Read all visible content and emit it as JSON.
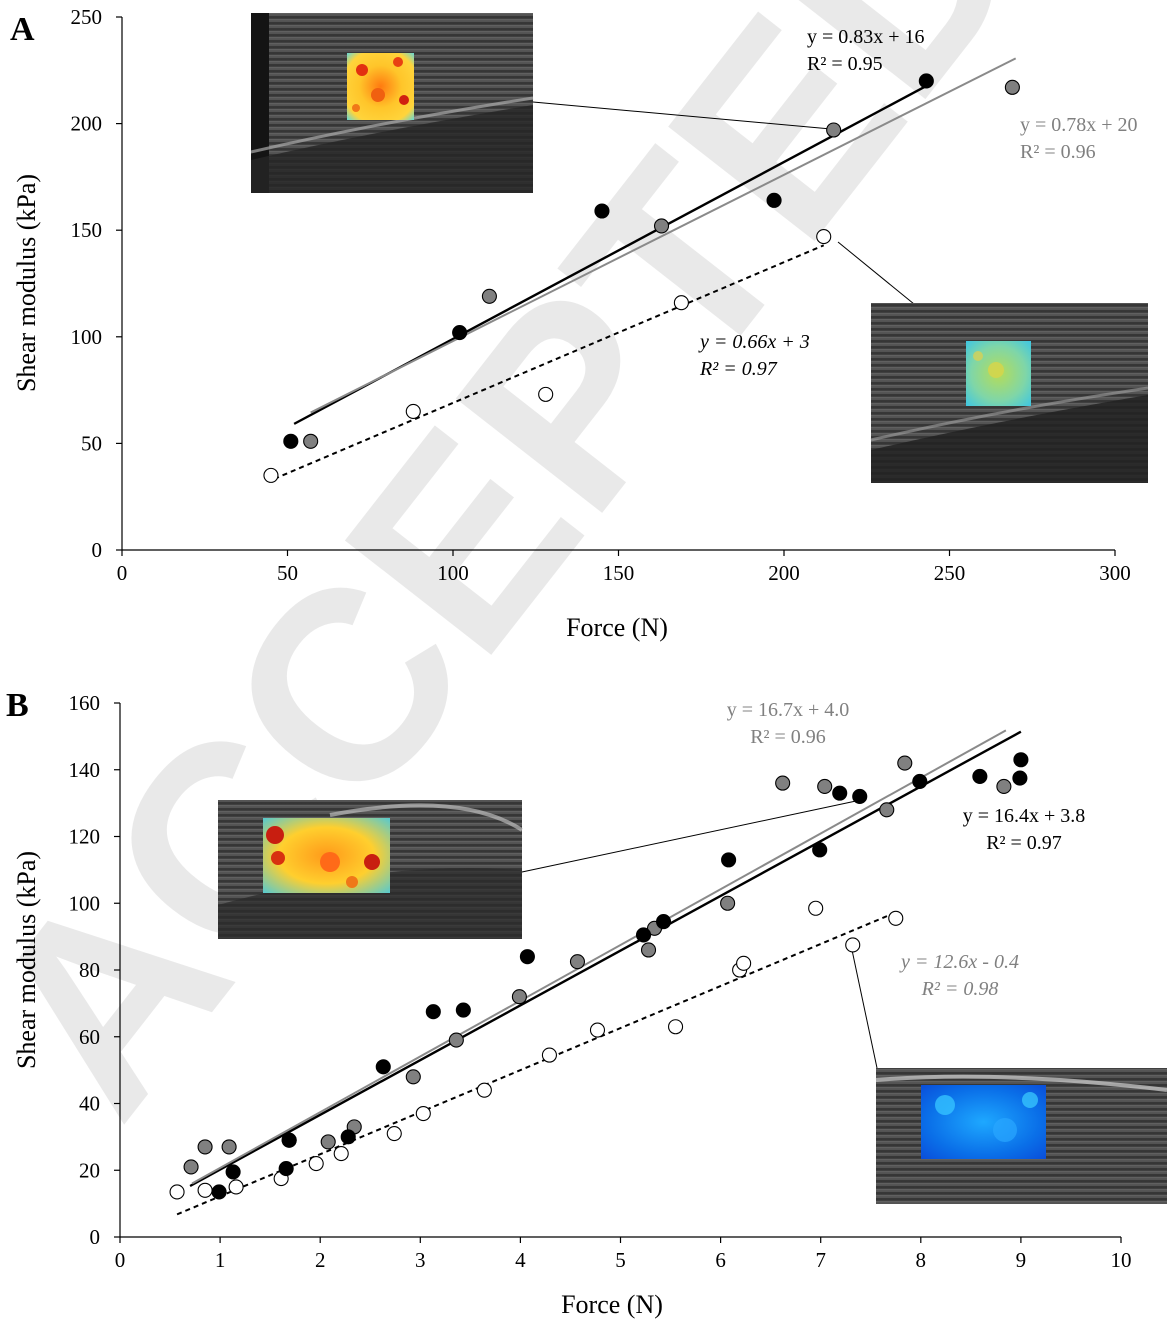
{
  "watermark": "ACCEPTED",
  "colors": {
    "black": "#000000",
    "gray_marker": "#808080",
    "gray_line": "#8a8a8a",
    "open_fill": "#ffffff",
    "eq_gray": "#808080"
  },
  "chart_data": [
    {
      "panel": "A",
      "type": "scatter",
      "xlabel": "Force (N)",
      "ylabel": "Shear modulus (kPa)",
      "xlim": [
        0,
        300
      ],
      "ylim": [
        0,
        250
      ],
      "xticks": [
        0,
        50,
        100,
        150,
        200,
        250,
        300
      ],
      "yticks": [
        0,
        50,
        100,
        150,
        200,
        250
      ],
      "series": [
        {
          "style": "black-filled",
          "points": [
            [
              51,
              51
            ],
            [
              102,
              102
            ],
            [
              145,
              159
            ],
            [
              197,
              164
            ],
            [
              243,
              220
            ]
          ],
          "fit": {
            "slope": 0.83,
            "intercept": 16,
            "x_range": [
              52,
              243
            ],
            "line": "solid-black"
          },
          "equation": "y = 0.83x + 16",
          "r2": "R² = 0.95"
        },
        {
          "style": "gray-filled",
          "points": [
            [
              57,
              51
            ],
            [
              111,
              119
            ],
            [
              163,
              152
            ],
            [
              215,
              197
            ],
            [
              269,
              217
            ]
          ],
          "fit": {
            "slope": 0.78,
            "intercept": 20,
            "x_range": [
              57,
              270
            ],
            "line": "solid-gray"
          },
          "equation": "y = 0.78x + 20",
          "r2": "R² = 0.96"
        },
        {
          "style": "open",
          "points": [
            [
              45,
              35
            ],
            [
              88,
              65
            ],
            [
              128,
              73
            ],
            [
              169,
              116
            ],
            [
              212,
              147
            ]
          ],
          "fit": {
            "slope": 0.66,
            "intercept": 3,
            "x_range": [
              46,
              212
            ],
            "line": "dashed-black"
          },
          "equation": "y = 0.66x + 3",
          "r2": "R² = 0.97"
        }
      ]
    },
    {
      "panel": "B",
      "type": "scatter",
      "xlabel": "Force (N)",
      "ylabel": "Shear modulus (kPa)",
      "xlim": [
        0,
        10
      ],
      "ylim": [
        0,
        160
      ],
      "xticks": [
        0,
        1,
        2,
        3,
        4,
        5,
        6,
        7,
        8,
        9,
        10
      ],
      "yticks": [
        0,
        20,
        40,
        60,
        80,
        100,
        120,
        140,
        160
      ],
      "series": [
        {
          "style": "black-filled",
          "points": [
            [
              0.99,
              13.5
            ],
            [
              1.13,
              19.5
            ],
            [
              1.66,
              20.5
            ],
            [
              1.69,
              29
            ],
            [
              2.28,
              30
            ],
            [
              2.63,
              51
            ],
            [
              3.13,
              67.5
            ],
            [
              3.43,
              68
            ],
            [
              4.07,
              84
            ],
            [
              5.23,
              90.5
            ],
            [
              5.43,
              94.5
            ],
            [
              6.08,
              113
            ],
            [
              6.99,
              116
            ],
            [
              7.19,
              133
            ],
            [
              7.39,
              132
            ],
            [
              7.99,
              136.5
            ],
            [
              8.59,
              138
            ],
            [
              8.99,
              137.5
            ],
            [
              9.0,
              143
            ]
          ],
          "fit": {
            "slope": 16.4,
            "intercept": 3.8,
            "x_range": [
              0.7,
              9.0
            ],
            "line": "solid-black"
          },
          "equation": "y = 16.4x + 3.8",
          "r2": "R² = 0.97"
        },
        {
          "style": "gray-filled",
          "points": [
            [
              0.71,
              21
            ],
            [
              0.85,
              27
            ],
            [
              1.09,
              27
            ],
            [
              1.69,
              29
            ],
            [
              2.08,
              28.5
            ],
            [
              2.34,
              33
            ],
            [
              2.93,
              48
            ],
            [
              3.36,
              59
            ],
            [
              3.99,
              72
            ],
            [
              4.57,
              82.5
            ],
            [
              5.28,
              86
            ],
            [
              5.34,
              92.5
            ],
            [
              6.07,
              100
            ],
            [
              6.62,
              136
            ],
            [
              7.04,
              135
            ],
            [
              7.66,
              128
            ],
            [
              7.84,
              142
            ],
            [
              8.83,
              135
            ]
          ],
          "fit": {
            "slope": 16.7,
            "intercept": 4.0,
            "x_range": [
              0.72,
              8.85
            ],
            "line": "solid-gray"
          },
          "equation": "y = 16.7x + 4.0",
          "r2": "R² = 0.96"
        },
        {
          "style": "open",
          "points": [
            [
              0.57,
              13.5
            ],
            [
              0.85,
              14
            ],
            [
              1.16,
              15
            ],
            [
              1.61,
              17.5
            ],
            [
              1.96,
              22
            ],
            [
              2.21,
              25
            ],
            [
              2.74,
              31
            ],
            [
              3.03,
              37
            ],
            [
              3.64,
              44
            ],
            [
              4.29,
              54.5
            ],
            [
              4.77,
              62
            ],
            [
              5.55,
              63
            ],
            [
              6.19,
              80
            ],
            [
              6.23,
              82
            ],
            [
              6.95,
              98.5
            ],
            [
              7.32,
              87.5
            ],
            [
              7.75,
              95.5
            ]
          ],
          "fit": {
            "slope": 12.6,
            "intercept": -0.4,
            "x_range": [
              0.57,
              7.7
            ],
            "line": "dashed-black"
          },
          "equation": "y = 12.6x - 0.4",
          "r2": "R² = 0.98"
        }
      ]
    }
  ]
}
